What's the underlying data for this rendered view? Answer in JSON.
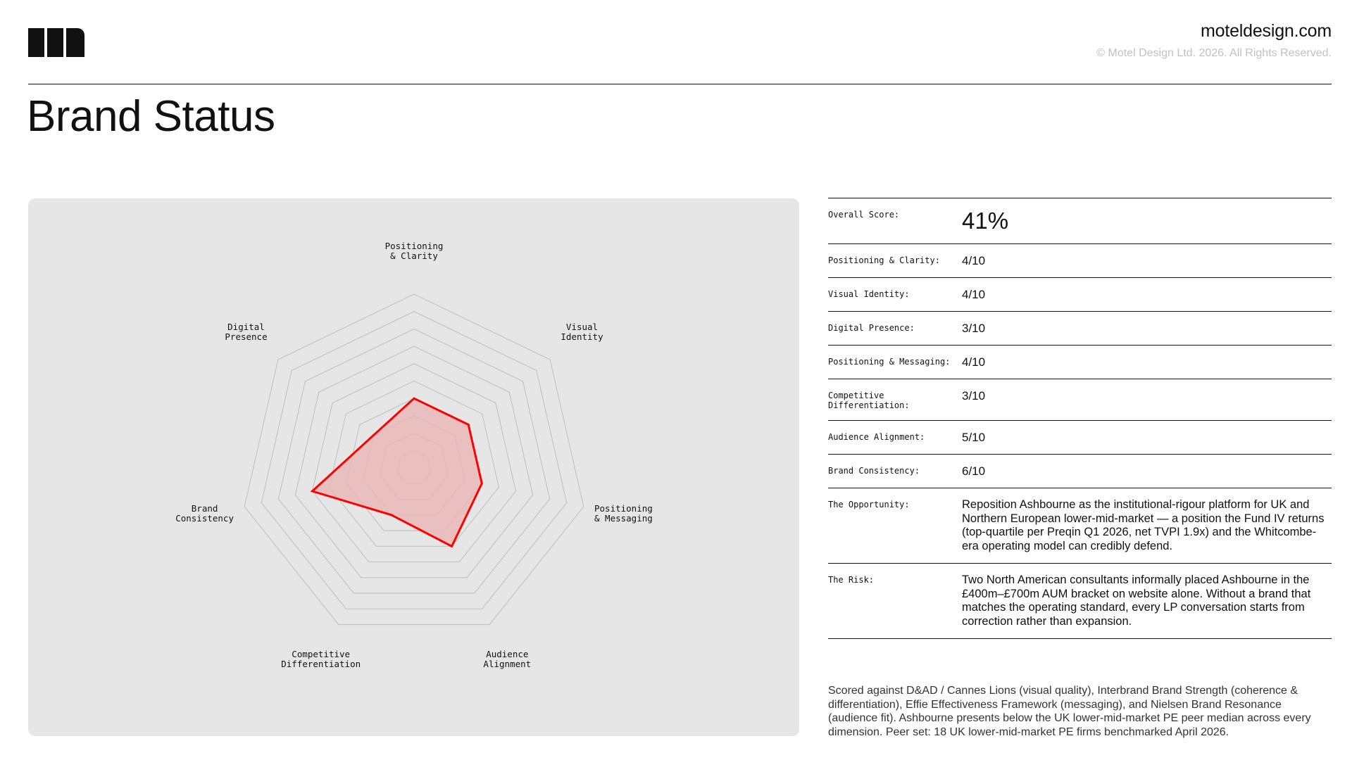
{
  "brand": {
    "site": "moteldesign.com",
    "copyright": "© Motel Design Ltd. 2026. All Rights Reserved."
  },
  "page": {
    "title": "Brand Status"
  },
  "colors": {
    "accent": "#ff0000",
    "fill": "#e9b7b7",
    "panel": "#e6e6e6",
    "grid": "#c4c4c4"
  },
  "chart_data": {
    "type": "radar",
    "title": "",
    "range": [
      0,
      10
    ],
    "rings": 10,
    "grid": true,
    "categories": [
      [
        "Positioning",
        "& Clarity"
      ],
      [
        "Visual",
        "Identity"
      ],
      [
        "Positioning",
        "& Messaging"
      ],
      [
        "Audience",
        "Alignment"
      ],
      [
        "Competitive",
        "Differentiation"
      ],
      [
        "Brand",
        "Consistency"
      ],
      [
        "Digital",
        "Presence"
      ]
    ],
    "series": [
      {
        "name": "Ashbourne",
        "values": [
          4,
          4,
          4,
          5,
          3,
          6,
          3
        ]
      }
    ]
  },
  "scores": {
    "overall": {
      "label": "Overall Score:",
      "value": "41%"
    },
    "rows": [
      {
        "label": "Positioning & Clarity:",
        "value": "4/10"
      },
      {
        "label": "Visual Identity:",
        "value": "4/10"
      },
      {
        "label": "Digital Presence:",
        "value": "3/10"
      },
      {
        "label": "Positioning & Messaging:",
        "value": "4/10"
      },
      {
        "label": "Competitive Differentiation:",
        "value": "3/10"
      },
      {
        "label": "Audience Alignment:",
        "value": "5/10"
      },
      {
        "label": "Brand Consistency:",
        "value": "6/10"
      }
    ],
    "opportunity": {
      "label": "The Opportunity:",
      "text": "Reposition Ashbourne as the institutional-rigour platform for UK and Northern European lower-mid-market — a position the Fund IV returns (top-quartile per Preqin Q1 2026, net TVPI 1.9x) and the Whitcombe-era operating model can credibly defend."
    },
    "risk": {
      "label": "The Risk:",
      "text": "Two North American consultants informally placed Ashbourne in the £400m–£700m AUM bracket on website alone. Without a brand that matches the operating standard, every LP conversation starts from correction rather than expansion."
    }
  },
  "footnote": "Scored against D&AD / Cannes Lions (visual quality), Interbrand Brand Strength (coherence & differentiation), Effie Effectiveness Framework (messaging), and Nielsen Brand Resonance (audience fit). Ashbourne presents below the UK lower-mid-market PE peer median across every dimension. Peer set: 18 UK lower-mid-market PE firms benchmarked April 2026."
}
